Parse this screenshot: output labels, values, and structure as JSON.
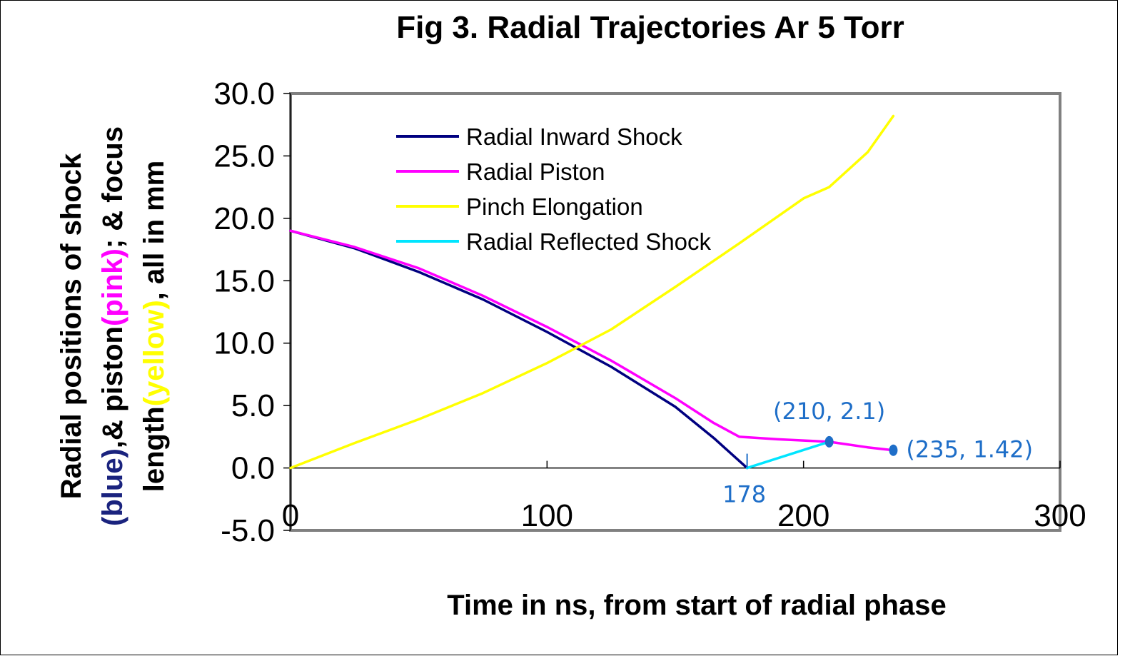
{
  "chart_data": {
    "type": "line",
    "title": "Fig 3. Radial Trajectories Ar 5 Torr",
    "xlabel": "Time in ns, from start of radial phase",
    "ylabel": {
      "line1": "Radial positions of shock",
      "line2_parts": [
        {
          "text": "(blue)",
          "color": "#1a237e"
        },
        {
          "text": ",& piston",
          "color": "#000000"
        },
        {
          "text": "(pink)",
          "color": "#ff00ff"
        },
        {
          "text": "; & focus",
          "color": "#000000"
        }
      ],
      "line3_parts": [
        {
          "text": "length",
          "color": "#000000"
        },
        {
          "text": "(yellow)",
          "color": "#ffff00"
        },
        {
          "text": ", all in mm",
          "color": "#000000"
        }
      ]
    },
    "xlim": [
      0,
      300
    ],
    "ylim": [
      -5,
      30
    ],
    "xticks": [
      "0",
      "100",
      "200",
      "300"
    ],
    "yticks": [
      "30.0",
      "25.0",
      "20.0",
      "15.0",
      "10.0",
      "5.0",
      "0.0",
      "-5.0"
    ],
    "legend_position": "top-left inside plot",
    "series": [
      {
        "name": "Radial Inward Shock",
        "color": "#000080",
        "points": [
          [
            0,
            19.0
          ],
          [
            25,
            17.6
          ],
          [
            50,
            15.7
          ],
          [
            75,
            13.5
          ],
          [
            100,
            10.9
          ],
          [
            125,
            8.1
          ],
          [
            150,
            4.9
          ],
          [
            165,
            2.4
          ],
          [
            178,
            0.0
          ]
        ]
      },
      {
        "name": "Radial Piston",
        "color": "#ff00ff",
        "points": [
          [
            0,
            19.0
          ],
          [
            25,
            17.7
          ],
          [
            50,
            16.0
          ],
          [
            75,
            13.8
          ],
          [
            100,
            11.3
          ],
          [
            125,
            8.6
          ],
          [
            150,
            5.6
          ],
          [
            165,
            3.6
          ],
          [
            175,
            2.5
          ],
          [
            190,
            2.3
          ],
          [
            210,
            2.1
          ],
          [
            225,
            1.65
          ],
          [
            235,
            1.42
          ]
        ]
      },
      {
        "name": "Pinch Elongation",
        "color": "#ffff00",
        "points": [
          [
            0,
            0.0
          ],
          [
            25,
            2.0
          ],
          [
            50,
            3.9
          ],
          [
            75,
            6.0
          ],
          [
            100,
            8.4
          ],
          [
            125,
            11.1
          ],
          [
            150,
            14.5
          ],
          [
            175,
            18.0
          ],
          [
            200,
            21.6
          ],
          [
            210,
            22.5
          ],
          [
            225,
            25.3
          ],
          [
            235,
            28.2
          ]
        ]
      },
      {
        "name": "Radial Reflected Shock",
        "color": "#00e5ff",
        "points": [
          [
            178,
            0.0
          ],
          [
            210,
            2.1
          ]
        ]
      }
    ],
    "annotations": [
      {
        "text": "(210, 2.1)",
        "x": 210,
        "y": 2.1
      },
      {
        "text": "(235, 1.42)",
        "x": 235,
        "y": 1.42
      },
      {
        "text": "178",
        "x": 178,
        "y": 0
      }
    ],
    "annotation_color": "#1e6ec8"
  }
}
